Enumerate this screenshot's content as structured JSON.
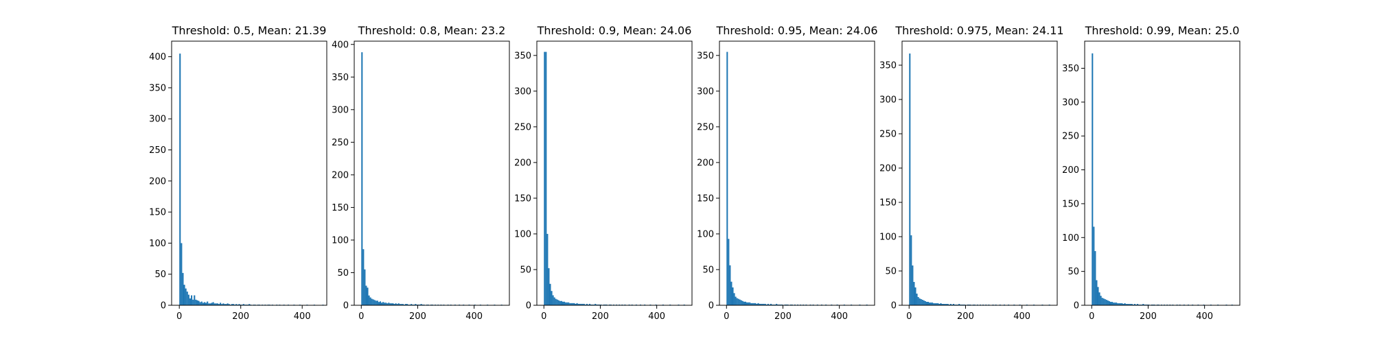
{
  "figure": {
    "background": "#ffffff",
    "bar_color": "#1f77b4",
    "frame_color": "#000000"
  },
  "chart_data": [
    {
      "type": "bar",
      "title": "Threshold: 0.5, Mean: 21.39",
      "xlabel": "",
      "ylabel": "",
      "xlim": [
        -25,
        480
      ],
      "ylim": [
        0,
        425
      ],
      "xticks": [
        0,
        200,
        400
      ],
      "yticks": [
        0,
        50,
        100,
        150,
        200,
        250,
        300,
        350,
        400
      ],
      "grid": false,
      "bin_width": 4.7,
      "bins_start": 0,
      "values": [
        405,
        100,
        52,
        33,
        27,
        22,
        17,
        11,
        16,
        9,
        16,
        9,
        8,
        7,
        5,
        6,
        4,
        5,
        4,
        6,
        3,
        3,
        4,
        5,
        3,
        3,
        3,
        2,
        4,
        2,
        3,
        2,
        2,
        3,
        2,
        1,
        2,
        2,
        1,
        2,
        1,
        2,
        1,
        1,
        2,
        1,
        1,
        1,
        2,
        1,
        0,
        1,
        1,
        0,
        1,
        1,
        0,
        1,
        0,
        1,
        0,
        1,
        1,
        0,
        1,
        0,
        0,
        1,
        0,
        1,
        0,
        0,
        1,
        0,
        0,
        1,
        0,
        0,
        0,
        1,
        0,
        0,
        0,
        1,
        0,
        0,
        0,
        0,
        1,
        0,
        0,
        0,
        0,
        1,
        0,
        0,
        0,
        0,
        0,
        1
      ]
    },
    {
      "type": "bar",
      "title": "Threshold: 0.8, Mean: 23.2",
      "xlabel": "",
      "ylabel": "",
      "xlim": [
        -25,
        525
      ],
      "ylim": [
        0,
        405
      ],
      "xticks": [
        0,
        200,
        400
      ],
      "yticks": [
        0,
        50,
        100,
        150,
        200,
        250,
        300,
        350,
        400
      ],
      "grid": false,
      "bin_width": 5.0,
      "bins_start": 0,
      "values": [
        388,
        86,
        55,
        30,
        27,
        15,
        12,
        10,
        9,
        8,
        7,
        7,
        5,
        6,
        4,
        5,
        4,
        4,
        3,
        4,
        3,
        3,
        3,
        2,
        3,
        2,
        3,
        2,
        2,
        2,
        1,
        2,
        2,
        1,
        1,
        2,
        1,
        1,
        2,
        1,
        1,
        1,
        2,
        1,
        1,
        0,
        1,
        1,
        0,
        1,
        1,
        0,
        1,
        0,
        1,
        0,
        1,
        0,
        1,
        0,
        0,
        1,
        0,
        1,
        0,
        0,
        1,
        0,
        0,
        1,
        0,
        0,
        1,
        0,
        0,
        0,
        1,
        0,
        0,
        0,
        1,
        0,
        0,
        0,
        1,
        0,
        0,
        0,
        0,
        1,
        0,
        0,
        0,
        0,
        1,
        0,
        0,
        0,
        0,
        1
      ]
    },
    {
      "type": "bar",
      "title": "Threshold: 0.9, Mean: 24.06",
      "xlabel": "",
      "ylabel": "",
      "xlim": [
        -25,
        525
      ],
      "ylim": [
        0,
        370
      ],
      "xticks": [
        0,
        200,
        400
      ],
      "yticks": [
        0,
        50,
        100,
        150,
        200,
        250,
        300,
        350
      ],
      "grid": false,
      "bin_width": 5.0,
      "bins_start": 0,
      "values": [
        355,
        355,
        100,
        52,
        30,
        20,
        14,
        11,
        9,
        8,
        7,
        6,
        6,
        5,
        5,
        4,
        4,
        4,
        3,
        3,
        3,
        3,
        2,
        3,
        2,
        2,
        2,
        2,
        2,
        1,
        2,
        1,
        2,
        1,
        1,
        1,
        2,
        1,
        1,
        1,
        1,
        0,
        1,
        1,
        1,
        0,
        1,
        1,
        0,
        1,
        0,
        1,
        0,
        1,
        0,
        1,
        0,
        1,
        0,
        0,
        1,
        0,
        1,
        0,
        0,
        1,
        0,
        0,
        1,
        0,
        0,
        1,
        0,
        0,
        0,
        1,
        0,
        0,
        0,
        1,
        0,
        0,
        0,
        0,
        1,
        0,
        0,
        0,
        0,
        1,
        0,
        0,
        0,
        0,
        0,
        1,
        0,
        0,
        0,
        1
      ]
    },
    {
      "type": "bar",
      "title": "Threshold: 0.95, Mean: 24.06",
      "xlabel": "",
      "ylabel": "",
      "xlim": [
        -25,
        525
      ],
      "ylim": [
        0,
        370
      ],
      "xticks": [
        0,
        200,
        400
      ],
      "yticks": [
        0,
        50,
        100,
        150,
        200,
        250,
        300,
        350
      ],
      "grid": false,
      "bin_width": 5.0,
      "bins_start": 0,
      "values": [
        355,
        93,
        56,
        33,
        25,
        17,
        12,
        10,
        9,
        8,
        7,
        6,
        5,
        5,
        4,
        4,
        4,
        3,
        3,
        3,
        3,
        2,
        3,
        2,
        2,
        2,
        2,
        2,
        1,
        2,
        1,
        2,
        1,
        1,
        1,
        2,
        1,
        1,
        1,
        1,
        0,
        1,
        1,
        1,
        0,
        1,
        1,
        0,
        1,
        0,
        1,
        0,
        1,
        0,
        1,
        0,
        1,
        0,
        0,
        1,
        0,
        1,
        0,
        0,
        1,
        0,
        0,
        1,
        0,
        0,
        1,
        0,
        0,
        0,
        1,
        0,
        0,
        0,
        1,
        0,
        0,
        0,
        0,
        1,
        0,
        0,
        0,
        0,
        1,
        0,
        0,
        0,
        0,
        0,
        1,
        0,
        0,
        0,
        0,
        1
      ]
    },
    {
      "type": "bar",
      "title": "Threshold: 0.975, Mean: 24.11",
      "xlabel": "",
      "ylabel": "",
      "xlim": [
        -25,
        525
      ],
      "ylim": [
        0,
        385
      ],
      "xticks": [
        0,
        200,
        400
      ],
      "yticks": [
        0,
        50,
        100,
        150,
        200,
        250,
        300,
        350
      ],
      "grid": false,
      "bin_width": 5.0,
      "bins_start": 0,
      "values": [
        367,
        102,
        58,
        34,
        26,
        17,
        12,
        10,
        9,
        8,
        7,
        6,
        5,
        5,
        4,
        4,
        4,
        3,
        3,
        3,
        3,
        2,
        3,
        2,
        2,
        2,
        2,
        2,
        1,
        2,
        1,
        2,
        1,
        1,
        1,
        2,
        1,
        1,
        1,
        1,
        0,
        1,
        1,
        1,
        0,
        1,
        1,
        0,
        1,
        0,
        1,
        0,
        1,
        0,
        1,
        0,
        1,
        0,
        0,
        1,
        0,
        1,
        0,
        0,
        1,
        0,
        0,
        1,
        0,
        0,
        1,
        0,
        0,
        0,
        1,
        0,
        0,
        0,
        1,
        0,
        0,
        0,
        0,
        1,
        0,
        0,
        0,
        0,
        1,
        0,
        0,
        0,
        0,
        0,
        1,
        0,
        0,
        0,
        0,
        1
      ]
    },
    {
      "type": "bar",
      "title": "Threshold: 0.99, Mean: 25.0",
      "xlabel": "",
      "ylabel": "",
      "xlim": [
        -25,
        525
      ],
      "ylim": [
        0,
        390
      ],
      "xticks": [
        0,
        200,
        400
      ],
      "yticks": [
        0,
        50,
        100,
        150,
        200,
        250,
        300,
        350
      ],
      "grid": false,
      "bin_width": 5.0,
      "bins_start": 0,
      "values": [
        372,
        116,
        80,
        37,
        27,
        19,
        14,
        11,
        10,
        9,
        8,
        7,
        6,
        5,
        5,
        4,
        4,
        4,
        3,
        3,
        3,
        3,
        2,
        3,
        2,
        2,
        2,
        2,
        2,
        1,
        2,
        1,
        2,
        1,
        1,
        1,
        2,
        1,
        1,
        1,
        1,
        0,
        1,
        1,
        1,
        0,
        1,
        1,
        0,
        1,
        0,
        1,
        0,
        1,
        0,
        1,
        0,
        1,
        0,
        0,
        1,
        0,
        1,
        0,
        0,
        1,
        0,
        0,
        1,
        0,
        0,
        1,
        0,
        0,
        0,
        1,
        0,
        0,
        0,
        1,
        0,
        0,
        0,
        0,
        1,
        0,
        0,
        0,
        0,
        1,
        0,
        0,
        0,
        0,
        0,
        1,
        0,
        0,
        0,
        1
      ]
    }
  ]
}
